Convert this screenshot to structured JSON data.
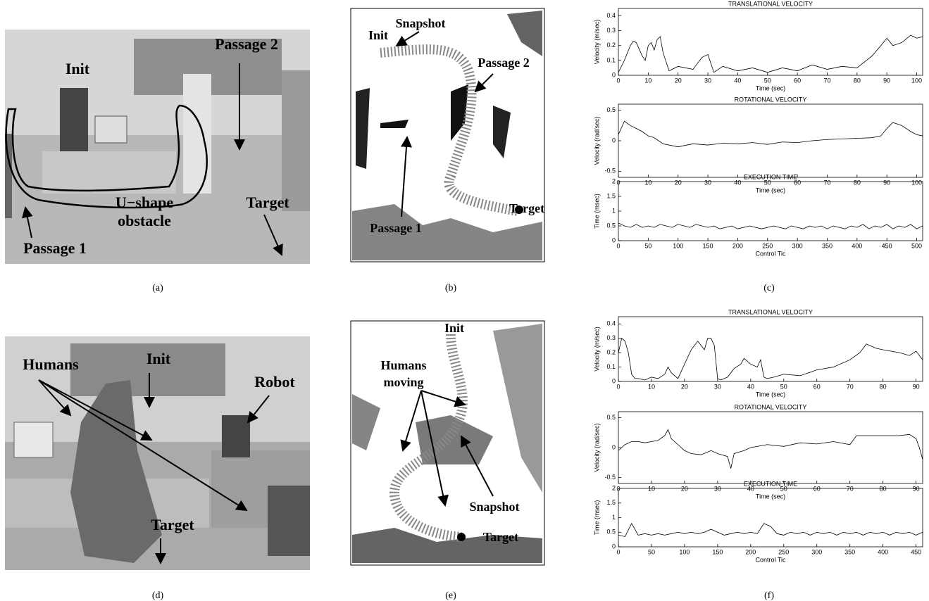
{
  "panels": [
    "(a)",
    "(b)",
    "(c)",
    "(d)",
    "(e)",
    "(f)"
  ],
  "photo_a": [
    "Init",
    "Passage 2",
    "Target",
    "U−shape",
    "obstacle",
    "Passage 1"
  ],
  "map_b": [
    "Init",
    "Snapshot",
    "Passage 2",
    "Passage 1",
    "Target"
  ],
  "photo_d": [
    "Humans",
    "Init",
    "Robot",
    "Target"
  ],
  "map_e": [
    "Init",
    "Humans",
    "moving",
    "Snapshot",
    "Target"
  ],
  "chart_data": [
    {
      "type": "line",
      "title": "TRANSLATIONAL VELOCITY",
      "xlabel": "Time (sec)",
      "ylabel": "Velocity (m/sec)",
      "color": "#000000",
      "x": [
        0,
        2,
        4,
        5,
        6,
        8,
        9,
        10,
        11,
        12,
        13,
        14,
        15,
        17,
        20,
        25,
        28,
        30,
        32,
        35,
        40,
        45,
        50,
        55,
        60,
        65,
        70,
        75,
        80,
        85,
        88,
        90,
        92,
        95,
        98,
        100,
        102
      ],
      "values": [
        0.02,
        0.1,
        0.2,
        0.23,
        0.22,
        0.13,
        0.1,
        0.2,
        0.22,
        0.17,
        0.24,
        0.26,
        0.15,
        0.03,
        0.06,
        0.04,
        0.12,
        0.14,
        0.02,
        0.06,
        0.03,
        0.05,
        0.02,
        0.05,
        0.03,
        0.07,
        0.04,
        0.06,
        0.05,
        0.13,
        0.2,
        0.25,
        0.2,
        0.22,
        0.27,
        0.25,
        0.26
      ],
      "xlim": [
        0,
        102
      ],
      "xticks": [
        0,
        10,
        20,
        30,
        40,
        50,
        60,
        70,
        80,
        90,
        100
      ],
      "ylim": [
        0,
        0.45
      ],
      "yticks": [
        0,
        0.1,
        0.2,
        0.3,
        0.4
      ]
    },
    {
      "type": "line",
      "title": "ROTATIONAL VELOCITY",
      "xlabel": "Time (sec)",
      "ylabel": "Velocity (rad/sec)",
      "color": "#000000",
      "x": [
        0,
        2,
        4,
        6,
        8,
        10,
        12,
        15,
        18,
        20,
        25,
        30,
        35,
        40,
        45,
        50,
        55,
        60,
        65,
        70,
        75,
        80,
        85,
        88,
        90,
        92,
        95,
        98,
        100,
        102
      ],
      "values": [
        0.1,
        0.32,
        0.25,
        0.2,
        0.15,
        0.08,
        0.05,
        -0.05,
        -0.08,
        -0.1,
        -0.05,
        -0.07,
        -0.04,
        -0.05,
        -0.03,
        -0.06,
        -0.02,
        -0.03,
        0.0,
        0.02,
        0.03,
        0.04,
        0.05,
        0.08,
        0.2,
        0.3,
        0.25,
        0.15,
        0.1,
        0.08
      ],
      "xlim": [
        0,
        102
      ],
      "xticks": [
        0,
        10,
        20,
        30,
        40,
        50,
        60,
        70,
        80,
        90,
        100
      ],
      "ylim": [
        -0.6,
        0.6
      ],
      "yticks": [
        -0.5,
        0,
        0.5
      ]
    },
    {
      "type": "line",
      "title": "EXECUTION TIME",
      "xlabel": "Control Tic",
      "ylabel": "Time (msec)",
      "color": "#000000",
      "x": [
        0,
        10,
        20,
        30,
        40,
        50,
        60,
        70,
        80,
        90,
        100,
        110,
        120,
        130,
        140,
        150,
        160,
        170,
        180,
        190,
        200,
        210,
        220,
        230,
        240,
        250,
        260,
        270,
        280,
        290,
        300,
        310,
        320,
        330,
        340,
        350,
        360,
        370,
        380,
        390,
        400,
        410,
        420,
        430,
        440,
        450,
        460,
        470,
        480,
        490,
        500,
        510
      ],
      "values": [
        0.6,
        0.5,
        0.45,
        0.55,
        0.45,
        0.5,
        0.45,
        0.55,
        0.5,
        0.45,
        0.55,
        0.5,
        0.45,
        0.55,
        0.5,
        0.45,
        0.5,
        0.4,
        0.45,
        0.5,
        0.4,
        0.45,
        0.5,
        0.45,
        0.4,
        0.45,
        0.5,
        0.45,
        0.4,
        0.5,
        0.45,
        0.4,
        0.5,
        0.45,
        0.5,
        0.4,
        0.5,
        0.45,
        0.4,
        0.5,
        0.45,
        0.55,
        0.4,
        0.5,
        0.45,
        0.55,
        0.4,
        0.5,
        0.45,
        0.55,
        0.4,
        0.5
      ],
      "xlim": [
        0,
        510
      ],
      "xticks": [
        0,
        50,
        100,
        150,
        200,
        250,
        300,
        350,
        400,
        450,
        500
      ],
      "ylim": [
        0,
        2
      ],
      "yticks": [
        0,
        0.5,
        1,
        1.5,
        2
      ]
    },
    {
      "type": "line",
      "title": "TRANSLATIONAL VELOCITY",
      "xlabel": "Time (sec)",
      "ylabel": "Velocity (m/sec)",
      "color": "#000000",
      "x": [
        0,
        1,
        2,
        3,
        4,
        5,
        6,
        8,
        10,
        12,
        14,
        15,
        16,
        18,
        20,
        22,
        24,
        26,
        27,
        28,
        29,
        30,
        31,
        33,
        35,
        37,
        38,
        40,
        42,
        43,
        44,
        45,
        47,
        50,
        55,
        60,
        65,
        70,
        73,
        75,
        78,
        80,
        85,
        88,
        90,
        92
      ],
      "values": [
        0.2,
        0.3,
        0.28,
        0.2,
        0.05,
        0.02,
        0.02,
        0.01,
        0.03,
        0.02,
        0.05,
        0.1,
        0.06,
        0.02,
        0.12,
        0.22,
        0.28,
        0.22,
        0.3,
        0.3,
        0.25,
        0.02,
        0.01,
        0.03,
        0.09,
        0.12,
        0.16,
        0.12,
        0.1,
        0.15,
        0.03,
        0.02,
        0.03,
        0.05,
        0.04,
        0.08,
        0.1,
        0.15,
        0.2,
        0.26,
        0.23,
        0.22,
        0.2,
        0.18,
        0.21,
        0.15
      ],
      "xlim": [
        0,
        92
      ],
      "xticks": [
        0,
        10,
        20,
        30,
        40,
        50,
        60,
        70,
        80,
        90
      ],
      "ylim": [
        0,
        0.45
      ],
      "yticks": [
        0,
        0.1,
        0.2,
        0.3,
        0.4
      ]
    },
    {
      "type": "line",
      "title": "ROTATIONAL VELOCITY",
      "xlabel": "Time (sec)",
      "ylabel": "Velocity (rad/sec)",
      "color": "#000000",
      "x": [
        0,
        2,
        4,
        6,
        8,
        10,
        12,
        14,
        15,
        16,
        18,
        20,
        22,
        25,
        28,
        30,
        33,
        34,
        35,
        38,
        40,
        45,
        50,
        55,
        60,
        65,
        70,
        72,
        75,
        80,
        85,
        88,
        90,
        91,
        92
      ],
      "values": [
        -0.05,
        0.05,
        0.1,
        0.1,
        0.08,
        0.1,
        0.12,
        0.2,
        0.3,
        0.15,
        0.05,
        -0.05,
        -0.1,
        -0.12,
        -0.05,
        -0.1,
        -0.15,
        -0.35,
        -0.1,
        -0.05,
        0.0,
        0.05,
        0.02,
        0.08,
        0.06,
        0.1,
        0.05,
        0.2,
        0.2,
        0.2,
        0.2,
        0.22,
        0.15,
        0.0,
        -0.2
      ],
      "xlim": [
        0,
        92
      ],
      "xticks": [
        0,
        10,
        20,
        30,
        40,
        50,
        60,
        70,
        80,
        90
      ],
      "ylim": [
        -0.6,
        0.6
      ],
      "yticks": [
        -0.5,
        0,
        0.5
      ]
    },
    {
      "type": "line",
      "title": "EXECUTION TIME",
      "xlabel": "Control Tic",
      "ylabel": "Time (msec)",
      "color": "#000000",
      "x": [
        0,
        10,
        20,
        30,
        40,
        50,
        60,
        70,
        80,
        90,
        100,
        110,
        120,
        130,
        140,
        150,
        160,
        170,
        180,
        190,
        200,
        210,
        220,
        230,
        240,
        250,
        260,
        270,
        280,
        290,
        300,
        310,
        320,
        330,
        340,
        350,
        360,
        370,
        380,
        390,
        400,
        410,
        420,
        430,
        440,
        450,
        460
      ],
      "values": [
        0.4,
        0.35,
        0.8,
        0.4,
        0.45,
        0.4,
        0.45,
        0.4,
        0.45,
        0.5,
        0.45,
        0.5,
        0.45,
        0.5,
        0.6,
        0.5,
        0.4,
        0.45,
        0.5,
        0.45,
        0.5,
        0.45,
        0.8,
        0.7,
        0.45,
        0.4,
        0.5,
        0.45,
        0.5,
        0.4,
        0.5,
        0.45,
        0.5,
        0.4,
        0.5,
        0.45,
        0.5,
        0.4,
        0.5,
        0.45,
        0.5,
        0.4,
        0.5,
        0.45,
        0.5,
        0.4,
        0.5
      ],
      "xlim": [
        0,
        460
      ],
      "xticks": [
        0,
        50,
        100,
        150,
        200,
        250,
        300,
        350,
        400,
        450
      ],
      "ylim": [
        0,
        2
      ],
      "yticks": [
        0,
        0.5,
        1,
        1.5,
        2
      ]
    }
  ]
}
